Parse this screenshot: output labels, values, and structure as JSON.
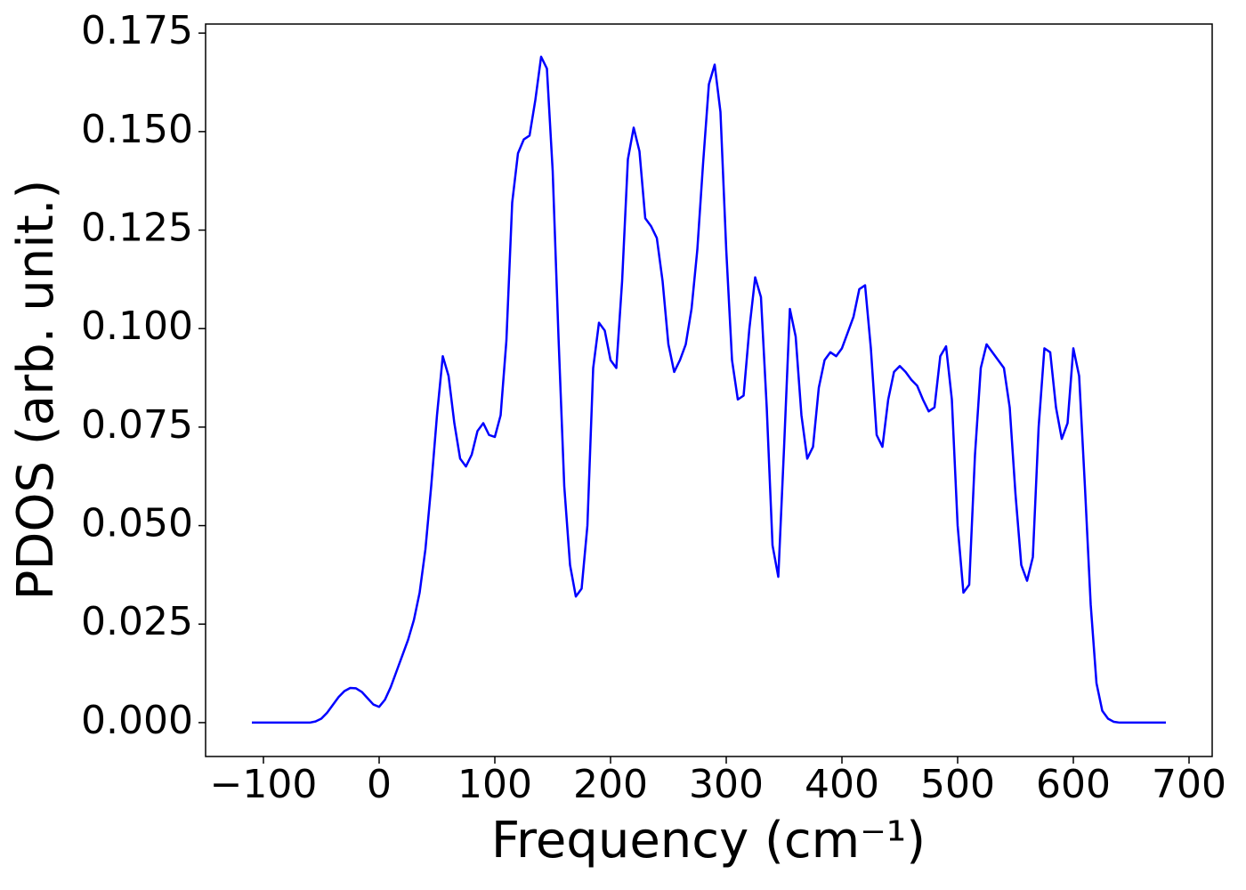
{
  "chart_data": {
    "type": "line",
    "xlabel": "Frequency (cm⁻¹)",
    "ylabel": "PDOS (arb. unit.)",
    "color": "#0000ff",
    "xlim": [
      -150,
      720
    ],
    "ylim": [
      -0.0086,
      0.1773
    ],
    "xticks": [
      {
        "value": -100,
        "label": "−100"
      },
      0,
      100,
      200,
      300,
      400,
      500,
      600,
      700
    ],
    "yticks": [
      {
        "value": 0,
        "label": "0.000"
      },
      0.025,
      {
        "value": 0.05,
        "label": "0.050"
      },
      0.075,
      {
        "value": 0.1,
        "label": "0.100"
      },
      0.125,
      {
        "value": 0.15,
        "label": "0.150"
      },
      0.175
    ],
    "x": [
      -110,
      -105,
      -100,
      -95,
      -90,
      -85,
      -80,
      -75,
      -70,
      -65,
      -60,
      -55,
      -50,
      -45,
      -40,
      -35,
      -30,
      -25,
      -20,
      -15,
      -10,
      -5,
      0,
      5,
      10,
      15,
      20,
      25,
      30,
      35,
      40,
      45,
      50,
      55,
      60,
      65,
      70,
      75,
      80,
      85,
      90,
      95,
      100,
      105,
      110,
      115,
      120,
      125,
      130,
      135,
      140,
      145,
      150,
      155,
      160,
      165,
      170,
      175,
      180,
      185,
      190,
      195,
      200,
      205,
      210,
      215,
      220,
      225,
      230,
      235,
      240,
      245,
      250,
      255,
      260,
      265,
      270,
      275,
      280,
      285,
      290,
      295,
      300,
      305,
      310,
      315,
      320,
      325,
      330,
      335,
      340,
      345,
      350,
      355,
      360,
      365,
      370,
      375,
      380,
      385,
      390,
      395,
      400,
      405,
      410,
      415,
      420,
      425,
      430,
      435,
      440,
      445,
      450,
      455,
      460,
      465,
      470,
      475,
      480,
      485,
      490,
      495,
      500,
      505,
      510,
      515,
      520,
      525,
      530,
      535,
      540,
      545,
      550,
      555,
      560,
      565,
      570,
      575,
      580,
      585,
      590,
      595,
      600,
      605,
      610,
      615,
      620,
      625,
      630,
      635,
      640,
      645,
      650,
      655,
      660,
      665,
      670,
      675,
      680
    ],
    "values": [
      0,
      0,
      0,
      0,
      0,
      0,
      0,
      0,
      0,
      0,
      0,
      0.0003,
      0.001,
      0.0025,
      0.0045,
      0.0065,
      0.008,
      0.0088,
      0.0087,
      0.0078,
      0.0062,
      0.0046,
      0.004,
      0.0058,
      0.009,
      0.013,
      0.017,
      0.021,
      0.026,
      0.033,
      0.044,
      0.06,
      0.078,
      0.093,
      0.088,
      0.076,
      0.067,
      0.065,
      0.068,
      0.074,
      0.076,
      0.073,
      0.0725,
      0.078,
      0.097,
      0.132,
      0.1445,
      0.148,
      0.149,
      0.158,
      0.169,
      0.166,
      0.14,
      0.098,
      0.06,
      0.04,
      0.032,
      0.034,
      0.05,
      0.09,
      0.1015,
      0.0995,
      0.092,
      0.09,
      0.112,
      0.143,
      0.151,
      0.145,
      0.128,
      0.126,
      0.123,
      0.112,
      0.096,
      0.089,
      0.092,
      0.096,
      0.105,
      0.12,
      0.142,
      0.162,
      0.167,
      0.155,
      0.12,
      0.092,
      0.082,
      0.083,
      0.1,
      0.113,
      0.108,
      0.08,
      0.045,
      0.037,
      0.07,
      0.105,
      0.098,
      0.078,
      0.067,
      0.07,
      0.085,
      0.092,
      0.094,
      0.093,
      0.095,
      0.099,
      0.103,
      0.11,
      0.111,
      0.095,
      0.073,
      0.07,
      0.082,
      0.089,
      0.0905,
      0.089,
      0.087,
      0.0855,
      0.082,
      0.079,
      0.08,
      0.093,
      0.0955,
      0.082,
      0.05,
      0.033,
      0.035,
      0.068,
      0.09,
      0.096,
      0.094,
      0.092,
      0.09,
      0.08,
      0.058,
      0.04,
      0.036,
      0.042,
      0.075,
      0.095,
      0.094,
      0.08,
      0.072,
      0.076,
      0.095,
      0.088,
      0.06,
      0.03,
      0.01,
      0.003,
      0.001,
      0.0002,
      0,
      0,
      0,
      0,
      0,
      0,
      0,
      0,
      0
    ]
  }
}
